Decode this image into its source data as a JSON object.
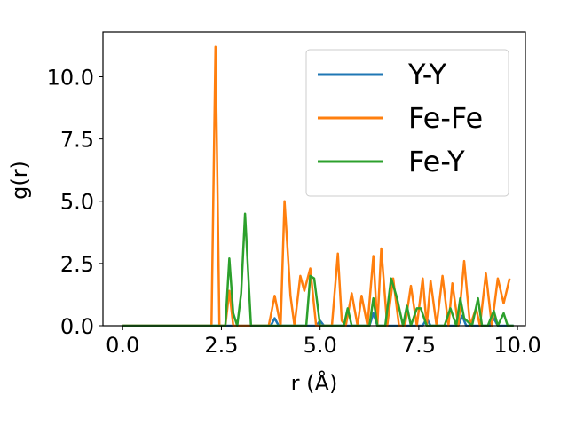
{
  "chart_data": {
    "type": "line",
    "xlabel": "r (Å)",
    "ylabel": "g(r)",
    "xlim": [
      -0.5,
      10.2
    ],
    "ylim": [
      0,
      11.8
    ],
    "xticks": [
      0.0,
      2.5,
      5.0,
      7.5,
      10.0
    ],
    "xtick_labels": [
      "0.0",
      "2.5",
      "5.0",
      "7.5",
      "10.0"
    ],
    "yticks": [
      0.0,
      2.5,
      5.0,
      7.5,
      10.0
    ],
    "ytick_labels": [
      "0.0",
      "2.5",
      "5.0",
      "7.5",
      "10.0"
    ],
    "grid": false,
    "legend_position": "top-right",
    "series": [
      {
        "name": "Y-Y",
        "color": "#1f77b4",
        "x": [
          0.0,
          3.75,
          3.85,
          3.95,
          4.9,
          5.0,
          5.1,
          6.25,
          6.35,
          6.45,
          7.6,
          7.7,
          7.8,
          8.5,
          8.6,
          8.7,
          9.3,
          9.4,
          9.5,
          9.9
        ],
        "y": [
          0.0,
          0.0,
          0.3,
          0.0,
          0.0,
          0.2,
          0.0,
          0.0,
          0.5,
          0.0,
          0.0,
          0.3,
          0.0,
          0.0,
          0.4,
          0.0,
          0.0,
          0.3,
          0.0,
          0.0
        ]
      },
      {
        "name": "Fe-Fe",
        "color": "#ff7f0e",
        "x": [
          0.0,
          2.25,
          2.35,
          2.45,
          2.6,
          2.7,
          2.8,
          2.9,
          3.7,
          3.85,
          4.0,
          4.1,
          4.25,
          4.35,
          4.5,
          4.6,
          4.75,
          4.9,
          5.0,
          5.1,
          5.3,
          5.45,
          5.55,
          5.65,
          5.8,
          5.95,
          6.05,
          6.2,
          6.35,
          6.45,
          6.55,
          6.7,
          6.85,
          7.0,
          7.15,
          7.3,
          7.45,
          7.6,
          7.7,
          7.8,
          7.95,
          8.1,
          8.25,
          8.35,
          8.5,
          8.65,
          8.8,
          8.95,
          9.05,
          9.2,
          9.35,
          9.5,
          9.65,
          9.8
        ],
        "y": [
          0.0,
          0.0,
          11.2,
          0.0,
          0.0,
          1.4,
          0.0,
          0.0,
          0.0,
          1.2,
          0.0,
          5.0,
          1.2,
          0.0,
          2.0,
          1.4,
          2.3,
          0.0,
          0.0,
          0.0,
          0.0,
          2.9,
          0.2,
          0.0,
          1.3,
          0.0,
          1.2,
          0.0,
          2.8,
          0.0,
          3.1,
          0.0,
          1.9,
          0.0,
          0.0,
          1.6,
          0.0,
          1.9,
          0.0,
          1.8,
          0.0,
          2.0,
          0.0,
          1.7,
          0.0,
          2.6,
          0.0,
          0.7,
          0.0,
          2.1,
          0.0,
          1.9,
          0.9,
          1.9
        ]
      },
      {
        "name": "Fe-Y",
        "color": "#2ca02c",
        "x": [
          0.0,
          2.6,
          2.7,
          2.8,
          2.9,
          3.0,
          3.1,
          3.25,
          3.8,
          4.65,
          4.75,
          4.85,
          5.0,
          5.6,
          5.7,
          5.8,
          6.25,
          6.35,
          6.45,
          6.65,
          6.8,
          6.95,
          7.1,
          7.2,
          7.3,
          7.45,
          7.55,
          7.7,
          7.85,
          8.15,
          8.3,
          8.45,
          8.55,
          8.65,
          8.85,
          9.0,
          9.1,
          9.25,
          9.4,
          9.5,
          9.65,
          9.75,
          9.9
        ],
        "y": [
          0.0,
          0.0,
          2.7,
          0.5,
          0.0,
          1.3,
          4.5,
          0.0,
          0.0,
          0.0,
          2.0,
          1.9,
          0.0,
          0.0,
          0.7,
          0.0,
          0.0,
          1.1,
          0.0,
          0.0,
          1.9,
          1.1,
          0.0,
          0.8,
          0.0,
          0.7,
          0.7,
          0.0,
          0.0,
          0.0,
          0.7,
          0.0,
          1.1,
          0.3,
          0.0,
          1.1,
          0.0,
          0.0,
          0.6,
          0.0,
          0.5,
          0.0,
          0.0
        ]
      }
    ]
  }
}
